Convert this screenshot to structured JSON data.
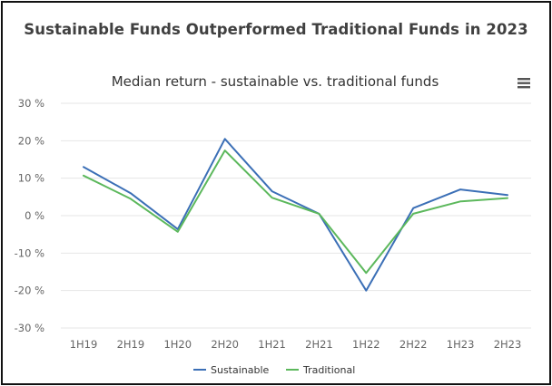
{
  "header": {
    "title": "Sustainable Funds Outperformed Traditional Funds in 2023"
  },
  "menu_icon": "hamburger-menu-icon",
  "chart_data": {
    "type": "line",
    "title": "Median return - sustainable vs. traditional funds",
    "categories": [
      "1H19",
      "2H19",
      "1H20",
      "2H20",
      "1H21",
      "2H21",
      "1H22",
      "2H22",
      "1H23",
      "2H23"
    ],
    "ylim": [
      -30,
      30
    ],
    "yticks": [
      30,
      20,
      10,
      0,
      -10,
      -20,
      -30
    ],
    "ytick_labels": [
      "30 %",
      "20 %",
      "10 %",
      "0 %",
      "-10 %",
      "-20 %",
      "-30 %"
    ],
    "grid": true,
    "legend_position": "bottom-center",
    "series": [
      {
        "name": "Sustainable",
        "color": "#3b6fb6",
        "values": [
          13,
          6,
          -3.6,
          20.5,
          6.5,
          0.5,
          -20,
          2,
          7,
          5.5
        ]
      },
      {
        "name": "Traditional",
        "color": "#5cb85c",
        "values": [
          10.7,
          4.5,
          -4.3,
          17.4,
          4.8,
          0.5,
          -15.3,
          0.5,
          3.8,
          4.7
        ]
      }
    ]
  }
}
